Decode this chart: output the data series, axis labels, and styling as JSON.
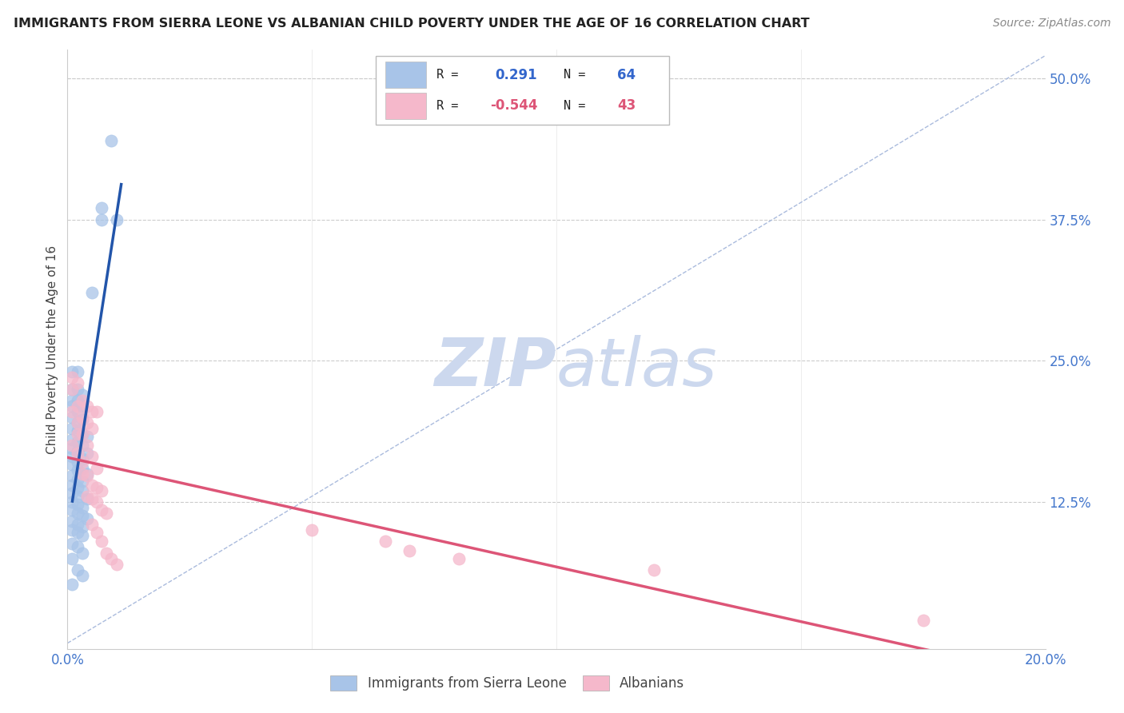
{
  "title": "IMMIGRANTS FROM SIERRA LEONE VS ALBANIAN CHILD POVERTY UNDER THE AGE OF 16 CORRELATION CHART",
  "source": "Source: ZipAtlas.com",
  "ylabel": "Child Poverty Under the Age of 16",
  "yticks_labels": [
    "50.0%",
    "37.5%",
    "25.0%",
    "12.5%"
  ],
  "ytick_vals": [
    0.5,
    0.375,
    0.25,
    0.125
  ],
  "xlim": [
    0.0,
    0.2
  ],
  "ylim": [
    -0.005,
    0.525
  ],
  "xtick_left": "0.0%",
  "xtick_right": "20.0%",
  "legend_blue_R": "0.291",
  "legend_blue_N": "64",
  "legend_pink_R": "-0.544",
  "legend_pink_N": "43",
  "legend_label1": "Immigrants from Sierra Leone",
  "legend_label2": "Albanians",
  "blue_color": "#a8c4e8",
  "pink_color": "#f5b8cb",
  "blue_line_color": "#2255aa",
  "pink_line_color": "#dd5577",
  "diag_color": "#aabbdd",
  "watermark_color": "#ccd8ee",
  "grid_color": "#cccccc",
  "blue_dots": [
    [
      0.001,
      0.24
    ],
    [
      0.002,
      0.24
    ],
    [
      0.001,
      0.225
    ],
    [
      0.002,
      0.225
    ],
    [
      0.003,
      0.22
    ],
    [
      0.001,
      0.215
    ],
    [
      0.002,
      0.215
    ],
    [
      0.003,
      0.21
    ],
    [
      0.001,
      0.21
    ],
    [
      0.002,
      0.205
    ],
    [
      0.001,
      0.2
    ],
    [
      0.003,
      0.198
    ],
    [
      0.002,
      0.195
    ],
    [
      0.001,
      0.19
    ],
    [
      0.002,
      0.188
    ],
    [
      0.003,
      0.185
    ],
    [
      0.004,
      0.183
    ],
    [
      0.001,
      0.18
    ],
    [
      0.002,
      0.178
    ],
    [
      0.003,
      0.175
    ],
    [
      0.001,
      0.172
    ],
    [
      0.002,
      0.17
    ],
    [
      0.004,
      0.168
    ],
    [
      0.001,
      0.165
    ],
    [
      0.003,
      0.163
    ],
    [
      0.002,
      0.16
    ],
    [
      0.001,
      0.158
    ],
    [
      0.003,
      0.155
    ],
    [
      0.002,
      0.153
    ],
    [
      0.004,
      0.15
    ],
    [
      0.001,
      0.148
    ],
    [
      0.002,
      0.145
    ],
    [
      0.003,
      0.143
    ],
    [
      0.001,
      0.14
    ],
    [
      0.002,
      0.138
    ],
    [
      0.003,
      0.135
    ],
    [
      0.001,
      0.133
    ],
    [
      0.002,
      0.13
    ],
    [
      0.004,
      0.128
    ],
    [
      0.001,
      0.125
    ],
    [
      0.002,
      0.123
    ],
    [
      0.003,
      0.12
    ],
    [
      0.001,
      0.118
    ],
    [
      0.002,
      0.115
    ],
    [
      0.003,
      0.113
    ],
    [
      0.004,
      0.11
    ],
    [
      0.001,
      0.108
    ],
    [
      0.002,
      0.105
    ],
    [
      0.003,
      0.103
    ],
    [
      0.001,
      0.1
    ],
    [
      0.002,
      0.098
    ],
    [
      0.003,
      0.095
    ],
    [
      0.001,
      0.088
    ],
    [
      0.002,
      0.085
    ],
    [
      0.003,
      0.08
    ],
    [
      0.001,
      0.075
    ],
    [
      0.002,
      0.065
    ],
    [
      0.003,
      0.06
    ],
    [
      0.001,
      0.052
    ],
    [
      0.007,
      0.385
    ],
    [
      0.009,
      0.445
    ],
    [
      0.007,
      0.375
    ],
    [
      0.01,
      0.375
    ],
    [
      0.005,
      0.31
    ]
  ],
  "pink_dots": [
    [
      0.001,
      0.235
    ],
    [
      0.002,
      0.23
    ],
    [
      0.001,
      0.225
    ],
    [
      0.003,
      0.215
    ],
    [
      0.002,
      0.21
    ],
    [
      0.001,
      0.205
    ],
    [
      0.004,
      0.21
    ],
    [
      0.003,
      0.2
    ],
    [
      0.002,
      0.195
    ],
    [
      0.005,
      0.205
    ],
    [
      0.004,
      0.195
    ],
    [
      0.002,
      0.185
    ],
    [
      0.003,
      0.185
    ],
    [
      0.005,
      0.19
    ],
    [
      0.006,
      0.205
    ],
    [
      0.001,
      0.175
    ],
    [
      0.004,
      0.175
    ],
    [
      0.002,
      0.168
    ],
    [
      0.003,
      0.16
    ],
    [
      0.005,
      0.165
    ],
    [
      0.006,
      0.155
    ],
    [
      0.003,
      0.15
    ],
    [
      0.004,
      0.148
    ],
    [
      0.005,
      0.14
    ],
    [
      0.006,
      0.138
    ],
    [
      0.007,
      0.135
    ],
    [
      0.004,
      0.13
    ],
    [
      0.005,
      0.128
    ],
    [
      0.006,
      0.125
    ],
    [
      0.007,
      0.118
    ],
    [
      0.008,
      0.115
    ],
    [
      0.005,
      0.105
    ],
    [
      0.006,
      0.098
    ],
    [
      0.007,
      0.09
    ],
    [
      0.008,
      0.08
    ],
    [
      0.009,
      0.075
    ],
    [
      0.01,
      0.07
    ],
    [
      0.05,
      0.1
    ],
    [
      0.065,
      0.09
    ],
    [
      0.07,
      0.082
    ],
    [
      0.08,
      0.075
    ],
    [
      0.12,
      0.065
    ],
    [
      0.175,
      0.02
    ]
  ]
}
